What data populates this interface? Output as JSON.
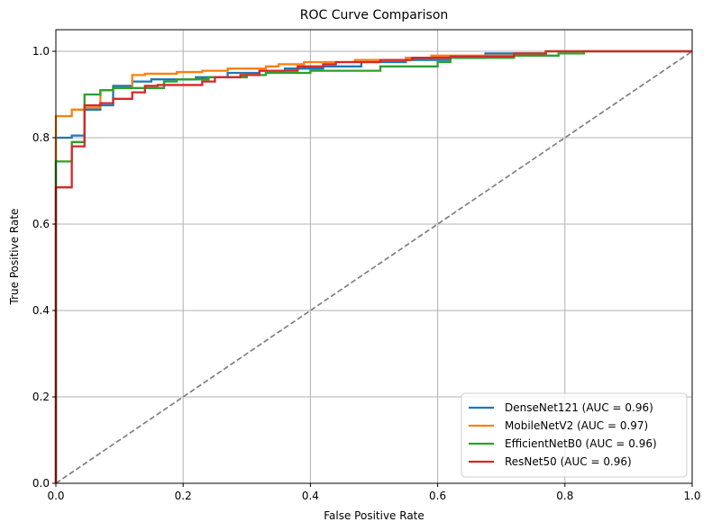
{
  "chart_data": {
    "type": "line",
    "title": "ROC Curve Comparison",
    "xlabel": "False Positive Rate",
    "ylabel": "True Positive Rate",
    "xlim": [
      0,
      1
    ],
    "ylim": [
      0,
      1.05
    ],
    "x_ticks": [
      "0.0",
      "0.2",
      "0.4",
      "0.6",
      "0.8",
      "1.0"
    ],
    "y_ticks": [
      "0.0",
      "0.2",
      "0.4",
      "0.6",
      "0.8",
      "1.0"
    ],
    "grid": true,
    "legend_position": "lower-right",
    "series": [
      {
        "name": "DenseNet121 (AUC = 0.96)",
        "color": "#1f77b4",
        "points": [
          [
            0,
            0
          ],
          [
            0,
            0.8
          ],
          [
            0.025,
            0.8
          ],
          [
            0.025,
            0.805
          ],
          [
            0.045,
            0.805
          ],
          [
            0.045,
            0.865
          ],
          [
            0.07,
            0.865
          ],
          [
            0.07,
            0.875
          ],
          [
            0.09,
            0.875
          ],
          [
            0.09,
            0.92
          ],
          [
            0.12,
            0.92
          ],
          [
            0.12,
            0.93
          ],
          [
            0.15,
            0.93
          ],
          [
            0.15,
            0.935
          ],
          [
            0.22,
            0.935
          ],
          [
            0.22,
            0.94
          ],
          [
            0.27,
            0.94
          ],
          [
            0.27,
            0.95
          ],
          [
            0.32,
            0.95
          ],
          [
            0.32,
            0.955
          ],
          [
            0.36,
            0.955
          ],
          [
            0.36,
            0.96
          ],
          [
            0.42,
            0.96
          ],
          [
            0.42,
            0.965
          ],
          [
            0.48,
            0.965
          ],
          [
            0.48,
            0.975
          ],
          [
            0.55,
            0.975
          ],
          [
            0.55,
            0.98
          ],
          [
            0.62,
            0.98
          ],
          [
            0.62,
            0.985
          ],
          [
            0.675,
            0.985
          ],
          [
            0.675,
            0.995
          ],
          [
            0.77,
            0.995
          ],
          [
            0.77,
            1.0
          ],
          [
            1.0,
            1.0
          ]
        ]
      },
      {
        "name": "MobileNetV2 (AUC = 0.97)",
        "color": "#ff7f0e",
        "points": [
          [
            0,
            0
          ],
          [
            0,
            0.85
          ],
          [
            0.025,
            0.85
          ],
          [
            0.025,
            0.865
          ],
          [
            0.045,
            0.865
          ],
          [
            0.045,
            0.87
          ],
          [
            0.07,
            0.87
          ],
          [
            0.07,
            0.91
          ],
          [
            0.09,
            0.91
          ],
          [
            0.09,
            0.915
          ],
          [
            0.12,
            0.915
          ],
          [
            0.12,
            0.945
          ],
          [
            0.14,
            0.945
          ],
          [
            0.14,
            0.948
          ],
          [
            0.19,
            0.948
          ],
          [
            0.19,
            0.952
          ],
          [
            0.23,
            0.952
          ],
          [
            0.23,
            0.955
          ],
          [
            0.27,
            0.955
          ],
          [
            0.27,
            0.96
          ],
          [
            0.33,
            0.96
          ],
          [
            0.33,
            0.965
          ],
          [
            0.35,
            0.965
          ],
          [
            0.35,
            0.97
          ],
          [
            0.39,
            0.97
          ],
          [
            0.39,
            0.975
          ],
          [
            0.47,
            0.975
          ],
          [
            0.47,
            0.98
          ],
          [
            0.55,
            0.98
          ],
          [
            0.55,
            0.985
          ],
          [
            0.59,
            0.985
          ],
          [
            0.59,
            0.99
          ],
          [
            0.77,
            0.99
          ],
          [
            0.77,
            1.0
          ],
          [
            1.0,
            1.0
          ]
        ]
      },
      {
        "name": "EfficientNetB0 (AUC = 0.96)",
        "color": "#2ca02c",
        "points": [
          [
            0,
            0
          ],
          [
            0,
            0.745
          ],
          [
            0.025,
            0.745
          ],
          [
            0.025,
            0.79
          ],
          [
            0.045,
            0.79
          ],
          [
            0.045,
            0.9
          ],
          [
            0.07,
            0.9
          ],
          [
            0.07,
            0.91
          ],
          [
            0.09,
            0.91
          ],
          [
            0.09,
            0.915
          ],
          [
            0.17,
            0.915
          ],
          [
            0.17,
            0.93
          ],
          [
            0.19,
            0.93
          ],
          [
            0.19,
            0.935
          ],
          [
            0.24,
            0.935
          ],
          [
            0.24,
            0.94
          ],
          [
            0.3,
            0.94
          ],
          [
            0.3,
            0.945
          ],
          [
            0.33,
            0.945
          ],
          [
            0.33,
            0.95
          ],
          [
            0.4,
            0.95
          ],
          [
            0.4,
            0.955
          ],
          [
            0.51,
            0.955
          ],
          [
            0.51,
            0.965
          ],
          [
            0.6,
            0.965
          ],
          [
            0.6,
            0.975
          ],
          [
            0.62,
            0.975
          ],
          [
            0.62,
            0.985
          ],
          [
            0.72,
            0.985
          ],
          [
            0.72,
            0.99
          ],
          [
            0.79,
            0.99
          ],
          [
            0.79,
            0.995
          ],
          [
            0.83,
            0.995
          ],
          [
            0.83,
            1.0
          ],
          [
            1.0,
            1.0
          ]
        ]
      },
      {
        "name": "ResNet50 (AUC = 0.96)",
        "color": "#d62728",
        "points": [
          [
            0,
            0
          ],
          [
            0,
            0.685
          ],
          [
            0.025,
            0.685
          ],
          [
            0.025,
            0.78
          ],
          [
            0.045,
            0.78
          ],
          [
            0.045,
            0.875
          ],
          [
            0.07,
            0.875
          ],
          [
            0.07,
            0.88
          ],
          [
            0.09,
            0.88
          ],
          [
            0.09,
            0.89
          ],
          [
            0.12,
            0.89
          ],
          [
            0.12,
            0.905
          ],
          [
            0.14,
            0.905
          ],
          [
            0.14,
            0.92
          ],
          [
            0.16,
            0.92
          ],
          [
            0.16,
            0.922
          ],
          [
            0.23,
            0.922
          ],
          [
            0.23,
            0.93
          ],
          [
            0.25,
            0.93
          ],
          [
            0.25,
            0.94
          ],
          [
            0.29,
            0.94
          ],
          [
            0.29,
            0.945
          ],
          [
            0.32,
            0.945
          ],
          [
            0.32,
            0.955
          ],
          [
            0.38,
            0.955
          ],
          [
            0.38,
            0.965
          ],
          [
            0.42,
            0.965
          ],
          [
            0.42,
            0.97
          ],
          [
            0.44,
            0.97
          ],
          [
            0.44,
            0.975
          ],
          [
            0.51,
            0.975
          ],
          [
            0.51,
            0.98
          ],
          [
            0.56,
            0.98
          ],
          [
            0.56,
            0.985
          ],
          [
            0.62,
            0.985
          ],
          [
            0.62,
            0.988
          ],
          [
            0.72,
            0.988
          ],
          [
            0.72,
            0.995
          ],
          [
            0.77,
            0.995
          ],
          [
            0.77,
            1.0
          ],
          [
            1.0,
            1.0
          ]
        ]
      }
    ],
    "reference_line": {
      "points": [
        [
          0,
          0
        ],
        [
          1,
          1
        ]
      ],
      "color": "#808080",
      "style": "dashed"
    }
  }
}
